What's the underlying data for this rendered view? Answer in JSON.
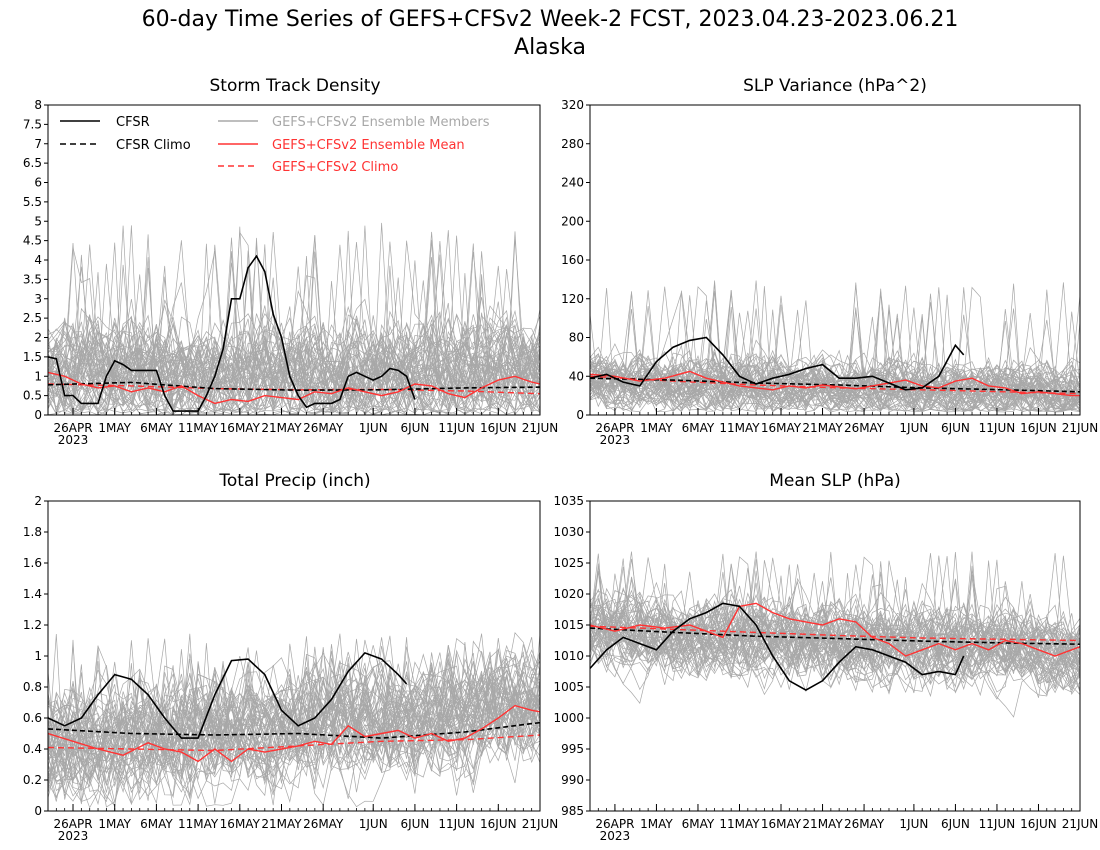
{
  "figure": {
    "title": "60-day Time Series of GEFS+CFSv2 Week-2 FCST, 2023.04.23-2023.06.21",
    "subtitle": "Alaska"
  },
  "legend": {
    "entries": [
      {
        "label": "CFSR",
        "color": "#000000",
        "dash": "solid"
      },
      {
        "label": "CFSR Climo",
        "color": "#000000",
        "dash": "dashed"
      },
      {
        "label": "GEFS+CFSv2 Ensemble Members",
        "color": "#a0a0a0",
        "dash": "solid"
      },
      {
        "label": "GEFS+CFSv2 Ensemble Mean",
        "color": "#ff3030",
        "dash": "solid"
      },
      {
        "label": "GEFS+CFSv2 Climo",
        "color": "#ff3030",
        "dash": "dashed"
      }
    ]
  },
  "colors": {
    "members": "#a8a8a8",
    "cfsr": "#000000",
    "ensemble_mean": "#ff3333",
    "gefs_climo": "#ff3333"
  },
  "chart_data": [
    {
      "id": "storm",
      "type": "line",
      "title": "Storm Track Density",
      "ylim": [
        0,
        8
      ],
      "yticks": [
        "0",
        "0.5",
        "1",
        "1.5",
        "2",
        "2.5",
        "3",
        "3.5",
        "4",
        "4.5",
        "5",
        "5.5",
        "6",
        "6.5",
        "7",
        "7.5",
        "8"
      ],
      "xlim": [
        0,
        59
      ],
      "xticks": [
        {
          "day": 3,
          "label": "26APR",
          "sublabel": "2023"
        },
        {
          "day": 8,
          "label": "1MAY"
        },
        {
          "day": 13,
          "label": "6MAY"
        },
        {
          "day": 18,
          "label": "11MAY"
        },
        {
          "day": 23,
          "label": "16MAY"
        },
        {
          "day": 28,
          "label": "21MAY"
        },
        {
          "day": 33,
          "label": "26MAY"
        },
        {
          "day": 39,
          "label": "1JUN"
        },
        {
          "day": 44,
          "label": "6JUN"
        },
        {
          "day": 49,
          "label": "11JUN"
        },
        {
          "day": 54,
          "label": "16JUN"
        },
        {
          "day": 59,
          "label": "21JUN"
        }
      ],
      "members": {
        "count": 60,
        "center_start": 1.0,
        "center_end": 1.15,
        "spread": 1.2,
        "max_peak": 5.0,
        "floor": 0
      },
      "cfsr": {
        "x": [
          0,
          1,
          2,
          3,
          4,
          5,
          6,
          7,
          8,
          9,
          10,
          11,
          12,
          13,
          14,
          15,
          16,
          17,
          18,
          19,
          20,
          21,
          22,
          23,
          24,
          25,
          26,
          27,
          28,
          29,
          30,
          31,
          32,
          33,
          34,
          35,
          36,
          37,
          38,
          39,
          40,
          41,
          42,
          43,
          44
        ],
        "y": [
          1.5,
          1.45,
          0.5,
          0.5,
          0.3,
          0.3,
          0.3,
          1.0,
          1.4,
          1.3,
          1.15,
          1.15,
          1.15,
          1.15,
          0.5,
          0.1,
          0.1,
          0.1,
          0.1,
          0.5,
          1.0,
          1.7,
          3.0,
          3.0,
          3.8,
          4.1,
          3.7,
          2.6,
          2.0,
          1.0,
          0.5,
          0.2,
          0.3,
          0.3,
          0.3,
          0.4,
          1.0,
          1.1,
          1.0,
          0.9,
          1.0,
          1.2,
          1.15,
          1.0,
          0.4
        ]
      },
      "cfsr_climo": {
        "x": [
          0,
          10,
          20,
          30,
          40,
          50,
          59
        ],
        "y": [
          0.78,
          0.84,
          0.68,
          0.64,
          0.65,
          0.7,
          0.72
        ]
      },
      "ens_mean": {
        "x": [
          0,
          2,
          4,
          6,
          8,
          10,
          12,
          14,
          16,
          18,
          20,
          22,
          24,
          26,
          28,
          30,
          32,
          34,
          36,
          38,
          40,
          42,
          44,
          46,
          48,
          50,
          52,
          54,
          56,
          58,
          59
        ],
        "y": [
          1.1,
          1.0,
          0.8,
          0.7,
          0.75,
          0.6,
          0.7,
          0.6,
          0.75,
          0.5,
          0.3,
          0.4,
          0.35,
          0.5,
          0.45,
          0.4,
          0.6,
          0.55,
          0.7,
          0.6,
          0.5,
          0.6,
          0.8,
          0.75,
          0.55,
          0.45,
          0.7,
          0.9,
          1.0,
          0.85,
          0.8
        ]
      },
      "gefs_climo": {
        "x": [
          0,
          10,
          20,
          30,
          40,
          50,
          59
        ],
        "y": [
          0.8,
          0.75,
          0.68,
          0.65,
          0.66,
          0.62,
          0.55
        ]
      }
    },
    {
      "id": "slpvar",
      "type": "line",
      "title": "SLP Variance (hPa^2)",
      "ylim": [
        0,
        320
      ],
      "yticks": [
        "0",
        "40",
        "80",
        "120",
        "160",
        "200",
        "240",
        "280",
        "320"
      ],
      "xlim": [
        0,
        59
      ],
      "xticks": [
        {
          "day": 3,
          "label": "26APR",
          "sublabel": "2023"
        },
        {
          "day": 8,
          "label": "1MAY"
        },
        {
          "day": 13,
          "label": "6MAY"
        },
        {
          "day": 18,
          "label": "11MAY"
        },
        {
          "day": 23,
          "label": "16MAY"
        },
        {
          "day": 28,
          "label": "21MAY"
        },
        {
          "day": 33,
          "label": "26MAY"
        },
        {
          "day": 39,
          "label": "1JUN"
        },
        {
          "day": 44,
          "label": "6JUN"
        },
        {
          "day": 49,
          "label": "11JUN"
        },
        {
          "day": 54,
          "label": "16JUN"
        },
        {
          "day": 59,
          "label": "21JUN"
        }
      ],
      "members": {
        "count": 60,
        "center_start": 36,
        "center_end": 22,
        "spread": 26,
        "max_peak": 140,
        "floor": 3
      },
      "cfsr": {
        "x": [
          0,
          2,
          4,
          6,
          8,
          10,
          12,
          14,
          16,
          18,
          20,
          22,
          24,
          26,
          28,
          30,
          32,
          34,
          36,
          38,
          40,
          42,
          44,
          45
        ],
        "y": [
          38,
          42,
          34,
          30,
          55,
          70,
          77,
          80,
          62,
          40,
          32,
          38,
          42,
          48,
          52,
          38,
          38,
          40,
          33,
          26,
          28,
          40,
          72,
          62
        ]
      },
      "cfsr_climo": {
        "x": [
          0,
          10,
          20,
          30,
          40,
          50,
          59
        ],
        "y": [
          38,
          36,
          33,
          31,
          28,
          26,
          24
        ]
      },
      "ens_mean": {
        "x": [
          0,
          3,
          6,
          9,
          12,
          14,
          16,
          18,
          20,
          22,
          24,
          26,
          28,
          30,
          32,
          34,
          36,
          38,
          40,
          42,
          44,
          46,
          48,
          50,
          52,
          54,
          56,
          58,
          59
        ],
        "y": [
          42,
          40,
          35,
          38,
          45,
          38,
          34,
          30,
          28,
          26,
          30,
          28,
          31,
          29,
          27,
          30,
          33,
          36,
          30,
          28,
          35,
          38,
          30,
          28,
          22,
          24,
          22,
          20,
          20
        ]
      },
      "gefs_climo": {
        "x": [
          0,
          10,
          20,
          30,
          40,
          50,
          59
        ],
        "y": [
          40,
          35,
          31,
          28,
          26,
          24,
          22
        ]
      }
    },
    {
      "id": "precip",
      "type": "line",
      "title": "Total Precip (inch)",
      "ylim": [
        0,
        2
      ],
      "yticks": [
        "0",
        "0.2",
        "0.4",
        "0.6",
        "0.8",
        "1",
        "1.2",
        "1.4",
        "1.6",
        "1.8",
        "2"
      ],
      "xlim": [
        0,
        59
      ],
      "xticks": [
        {
          "day": 3,
          "label": "26APR",
          "sublabel": "2023"
        },
        {
          "day": 8,
          "label": "1MAY"
        },
        {
          "day": 13,
          "label": "6MAY"
        },
        {
          "day": 18,
          "label": "11MAY"
        },
        {
          "day": 23,
          "label": "16MAY"
        },
        {
          "day": 28,
          "label": "21MAY"
        },
        {
          "day": 33,
          "label": "26MAY"
        },
        {
          "day": 39,
          "label": "1JUN"
        },
        {
          "day": 44,
          "label": "6JUN"
        },
        {
          "day": 49,
          "label": "11JUN"
        },
        {
          "day": 54,
          "label": "16JUN"
        },
        {
          "day": 59,
          "label": "21JUN"
        }
      ],
      "members": {
        "count": 60,
        "center_start": 0.42,
        "center_end": 0.68,
        "spread": 0.32,
        "max_peak": 1.15,
        "floor": 0.02
      },
      "cfsr": {
        "x": [
          0,
          2,
          4,
          6,
          8,
          10,
          12,
          14,
          16,
          18,
          20,
          22,
          24,
          26,
          28,
          30,
          32,
          34,
          36,
          38,
          40,
          42,
          43
        ],
        "y": [
          0.6,
          0.55,
          0.6,
          0.75,
          0.88,
          0.85,
          0.75,
          0.6,
          0.47,
          0.47,
          0.75,
          0.97,
          0.98,
          0.88,
          0.65,
          0.55,
          0.6,
          0.72,
          0.9,
          1.02,
          0.98,
          0.88,
          0.82
        ]
      },
      "cfsr_climo": {
        "x": [
          0,
          10,
          20,
          30,
          40,
          50,
          59
        ],
        "y": [
          0.53,
          0.5,
          0.49,
          0.5,
          0.47,
          0.51,
          0.57
        ]
      },
      "ens_mean": {
        "x": [
          0,
          3,
          6,
          9,
          12,
          14,
          16,
          18,
          20,
          22,
          24,
          26,
          28,
          30,
          32,
          34,
          36,
          38,
          40,
          42,
          44,
          46,
          48,
          50,
          52,
          54,
          56,
          58,
          59
        ],
        "y": [
          0.5,
          0.45,
          0.4,
          0.36,
          0.44,
          0.4,
          0.38,
          0.32,
          0.4,
          0.32,
          0.4,
          0.38,
          0.4,
          0.42,
          0.45,
          0.43,
          0.55,
          0.48,
          0.5,
          0.52,
          0.47,
          0.5,
          0.45,
          0.47,
          0.53,
          0.6,
          0.68,
          0.65,
          0.64
        ]
      },
      "gefs_climo": {
        "x": [
          0,
          10,
          20,
          30,
          40,
          50,
          59
        ],
        "y": [
          0.41,
          0.4,
          0.39,
          0.42,
          0.45,
          0.46,
          0.49
        ]
      }
    },
    {
      "id": "meanslp",
      "type": "line",
      "title": "Mean SLP (hPa)",
      "ylim": [
        985,
        1035
      ],
      "yticks": [
        "985",
        "990",
        "995",
        "1000",
        "1005",
        "1010",
        "1015",
        "1020",
        "1025",
        "1030",
        "1035"
      ],
      "xlim": [
        0,
        59
      ],
      "xticks": [
        {
          "day": 3,
          "label": "26APR",
          "sublabel": "2023"
        },
        {
          "day": 8,
          "label": "1MAY"
        },
        {
          "day": 13,
          "label": "6MAY"
        },
        {
          "day": 18,
          "label": "11MAY"
        },
        {
          "day": 23,
          "label": "16MAY"
        },
        {
          "day": 28,
          "label": "21MAY"
        },
        {
          "day": 33,
          "label": "26MAY"
        },
        {
          "day": 39,
          "label": "1JUN"
        },
        {
          "day": 44,
          "label": "6JUN"
        },
        {
          "day": 49,
          "label": "11JUN"
        },
        {
          "day": 54,
          "label": "16JUN"
        },
        {
          "day": 59,
          "label": "21JUN"
        }
      ],
      "members": {
        "count": 60,
        "center_start": 1014,
        "center_end": 1011,
        "spread": 5.5,
        "max_peak": 1027,
        "floor": 999
      },
      "cfsr": {
        "x": [
          0,
          2,
          4,
          6,
          8,
          10,
          12,
          14,
          16,
          18,
          20,
          22,
          24,
          26,
          28,
          30,
          32,
          34,
          36,
          38,
          40,
          42,
          44,
          45
        ],
        "y": [
          1008,
          1011,
          1013,
          1012,
          1011,
          1014,
          1016,
          1017,
          1018.5,
          1018,
          1015,
          1010,
          1006,
          1004.5,
          1006,
          1009,
          1011.5,
          1011,
          1010,
          1009,
          1007,
          1007.5,
          1007,
          1010
        ]
      },
      "cfsr_climo": {
        "x": [
          0,
          10,
          20,
          30,
          40,
          50,
          59
        ],
        "y": [
          1014.5,
          1013.8,
          1013.2,
          1012.8,
          1012.4,
          1012.1,
          1011.9
        ]
      },
      "ens_mean": {
        "x": [
          0,
          3,
          6,
          9,
          12,
          14,
          16,
          18,
          20,
          22,
          24,
          26,
          28,
          30,
          32,
          34,
          36,
          38,
          40,
          42,
          44,
          46,
          48,
          50,
          52,
          54,
          56,
          58,
          59
        ],
        "y": [
          1015,
          1014,
          1015,
          1014.5,
          1015,
          1014,
          1013,
          1018,
          1018.5,
          1017,
          1016,
          1015.5,
          1015,
          1016,
          1015.5,
          1013,
          1012,
          1010,
          1011,
          1012,
          1011,
          1012,
          1011,
          1012.5,
          1012,
          1011,
          1010,
          1011,
          1011.5
        ]
      },
      "gefs_climo": {
        "x": [
          0,
          10,
          20,
          30,
          40,
          50,
          59
        ],
        "y": [
          1014.8,
          1014.3,
          1013.8,
          1013.3,
          1012.9,
          1012.7,
          1012.5
        ]
      }
    }
  ]
}
